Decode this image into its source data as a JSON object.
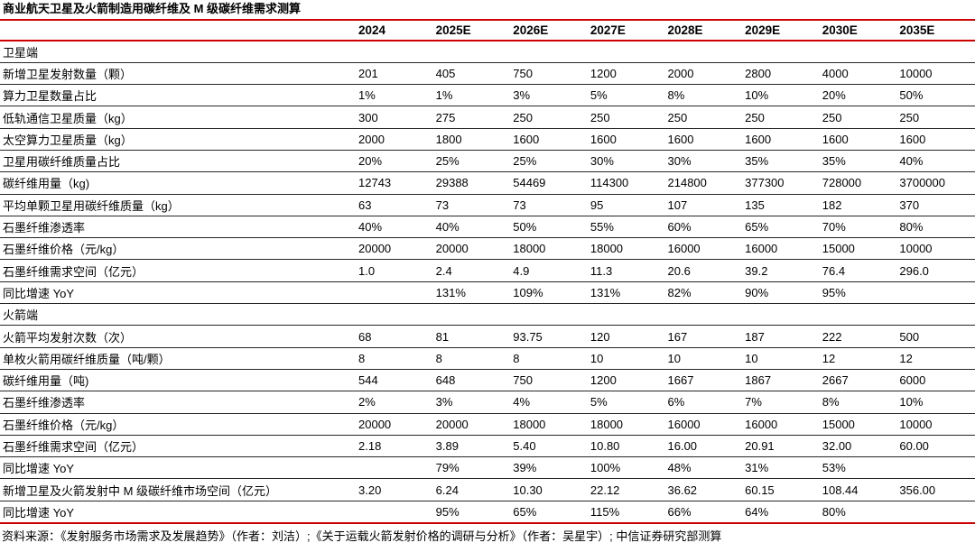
{
  "title": "商业航天卫星及火箭制造用碳纤维及 M 级碳纤维需求测算",
  "colors": {
    "accent_red": "#cc0000",
    "row_line": "#262626",
    "text": "#000000"
  },
  "table": {
    "columns": [
      "2024",
      "2025E",
      "2026E",
      "2027E",
      "2028E",
      "2029E",
      "2030E",
      "2035E"
    ],
    "rows": [
      {
        "label": "卫星端",
        "type": "section",
        "values": [
          "",
          "",
          "",
          "",
          "",
          "",
          "",
          ""
        ]
      },
      {
        "label": "新增卫星发射数量（颗）",
        "type": "data",
        "values": [
          "201",
          "405",
          "750",
          "1200",
          "2000",
          "2800",
          "4000",
          "10000"
        ]
      },
      {
        "label": "算力卫星数量占比",
        "type": "data",
        "values": [
          "1%",
          "1%",
          "3%",
          "5%",
          "8%",
          "10%",
          "20%",
          "50%"
        ]
      },
      {
        "label": "低轨通信卫星质量（kg）",
        "type": "data",
        "values": [
          "300",
          "275",
          "250",
          "250",
          "250",
          "250",
          "250",
          "250"
        ]
      },
      {
        "label": "太空算力卫星质量（kg）",
        "type": "data",
        "values": [
          "2000",
          "1800",
          "1600",
          "1600",
          "1600",
          "1600",
          "1600",
          "1600"
        ]
      },
      {
        "label": "卫星用碳纤维质量占比",
        "type": "data",
        "values": [
          "20%",
          "25%",
          "25%",
          "30%",
          "30%",
          "35%",
          "35%",
          "40%"
        ]
      },
      {
        "label": "碳纤维用量（kg)",
        "type": "data",
        "values": [
          "12743",
          "29388",
          "54469",
          "114300",
          "214800",
          "377300",
          "728000",
          "3700000"
        ]
      },
      {
        "label": "平均单颗卫星用碳纤维质量（kg）",
        "type": "data",
        "values": [
          "63",
          "73",
          "73",
          "95",
          "107",
          "135",
          "182",
          "370"
        ]
      },
      {
        "label": "石墨纤维渗透率",
        "type": "data",
        "values": [
          "40%",
          "40%",
          "50%",
          "55%",
          "60%",
          "65%",
          "70%",
          "80%"
        ]
      },
      {
        "label": "石墨纤维价格（元/kg）",
        "type": "data",
        "values": [
          "20000",
          "20000",
          "18000",
          "18000",
          "16000",
          "16000",
          "15000",
          "10000"
        ]
      },
      {
        "label": "石墨纤维需求空间（亿元）",
        "type": "data",
        "values": [
          "1.0",
          "2.4",
          "4.9",
          "11.3",
          "20.6",
          "39.2",
          "76.4",
          "296.0"
        ]
      },
      {
        "label": "同比增速 YoY",
        "type": "data",
        "values": [
          "",
          "131%",
          "109%",
          "131%",
          "82%",
          "90%",
          "95%",
          ""
        ]
      },
      {
        "label": "火箭端",
        "type": "section",
        "values": [
          "",
          "",
          "",
          "",
          "",
          "",
          "",
          ""
        ]
      },
      {
        "label": "火箭平均发射次数（次）",
        "type": "data",
        "values": [
          "68",
          "81",
          "93.75",
          "120",
          "167",
          "187",
          "222",
          "500"
        ]
      },
      {
        "label": "单枚火箭用碳纤维质量（吨/颗）",
        "type": "data",
        "values": [
          "8",
          "8",
          "8",
          "10",
          "10",
          "10",
          "12",
          "12"
        ]
      },
      {
        "label": "碳纤维用量（吨)",
        "type": "data",
        "values": [
          "544",
          "648",
          "750",
          "1200",
          "1667",
          "1867",
          "2667",
          "6000"
        ]
      },
      {
        "label": "石墨纤维渗透率",
        "type": "data",
        "values": [
          "2%",
          "3%",
          "4%",
          "5%",
          "6%",
          "7%",
          "8%",
          "10%"
        ]
      },
      {
        "label": "石墨纤维价格（元/kg）",
        "type": "data",
        "values": [
          "20000",
          "20000",
          "18000",
          "18000",
          "16000",
          "16000",
          "15000",
          "10000"
        ]
      },
      {
        "label": "石墨纤维需求空间（亿元）",
        "type": "data",
        "values": [
          "2.18",
          "3.89",
          "5.40",
          "10.80",
          "16.00",
          "20.91",
          "32.00",
          "60.00"
        ]
      },
      {
        "label": "同比增速 YoY",
        "type": "data",
        "values": [
          "",
          "79%",
          "39%",
          "100%",
          "48%",
          "31%",
          "53%",
          ""
        ]
      },
      {
        "label": "新增卫星及火箭发射中 M 级碳纤维市场空间（亿元）",
        "type": "data",
        "values": [
          "3.20",
          "6.24",
          "10.30",
          "22.12",
          "36.62",
          "60.15",
          "108.44",
          "356.00"
        ]
      },
      {
        "label": "同比增速 YoY",
        "type": "data",
        "values": [
          "",
          "95%",
          "65%",
          "115%",
          "66%",
          "64%",
          "80%",
          ""
        ]
      }
    ]
  },
  "footer": "资料来源：《发射服务市场需求及发展趋势》（作者：刘洁）;《关于运载火箭发射价格的调研与分析》（作者：吴星宇）; 中信证券研究部测算"
}
